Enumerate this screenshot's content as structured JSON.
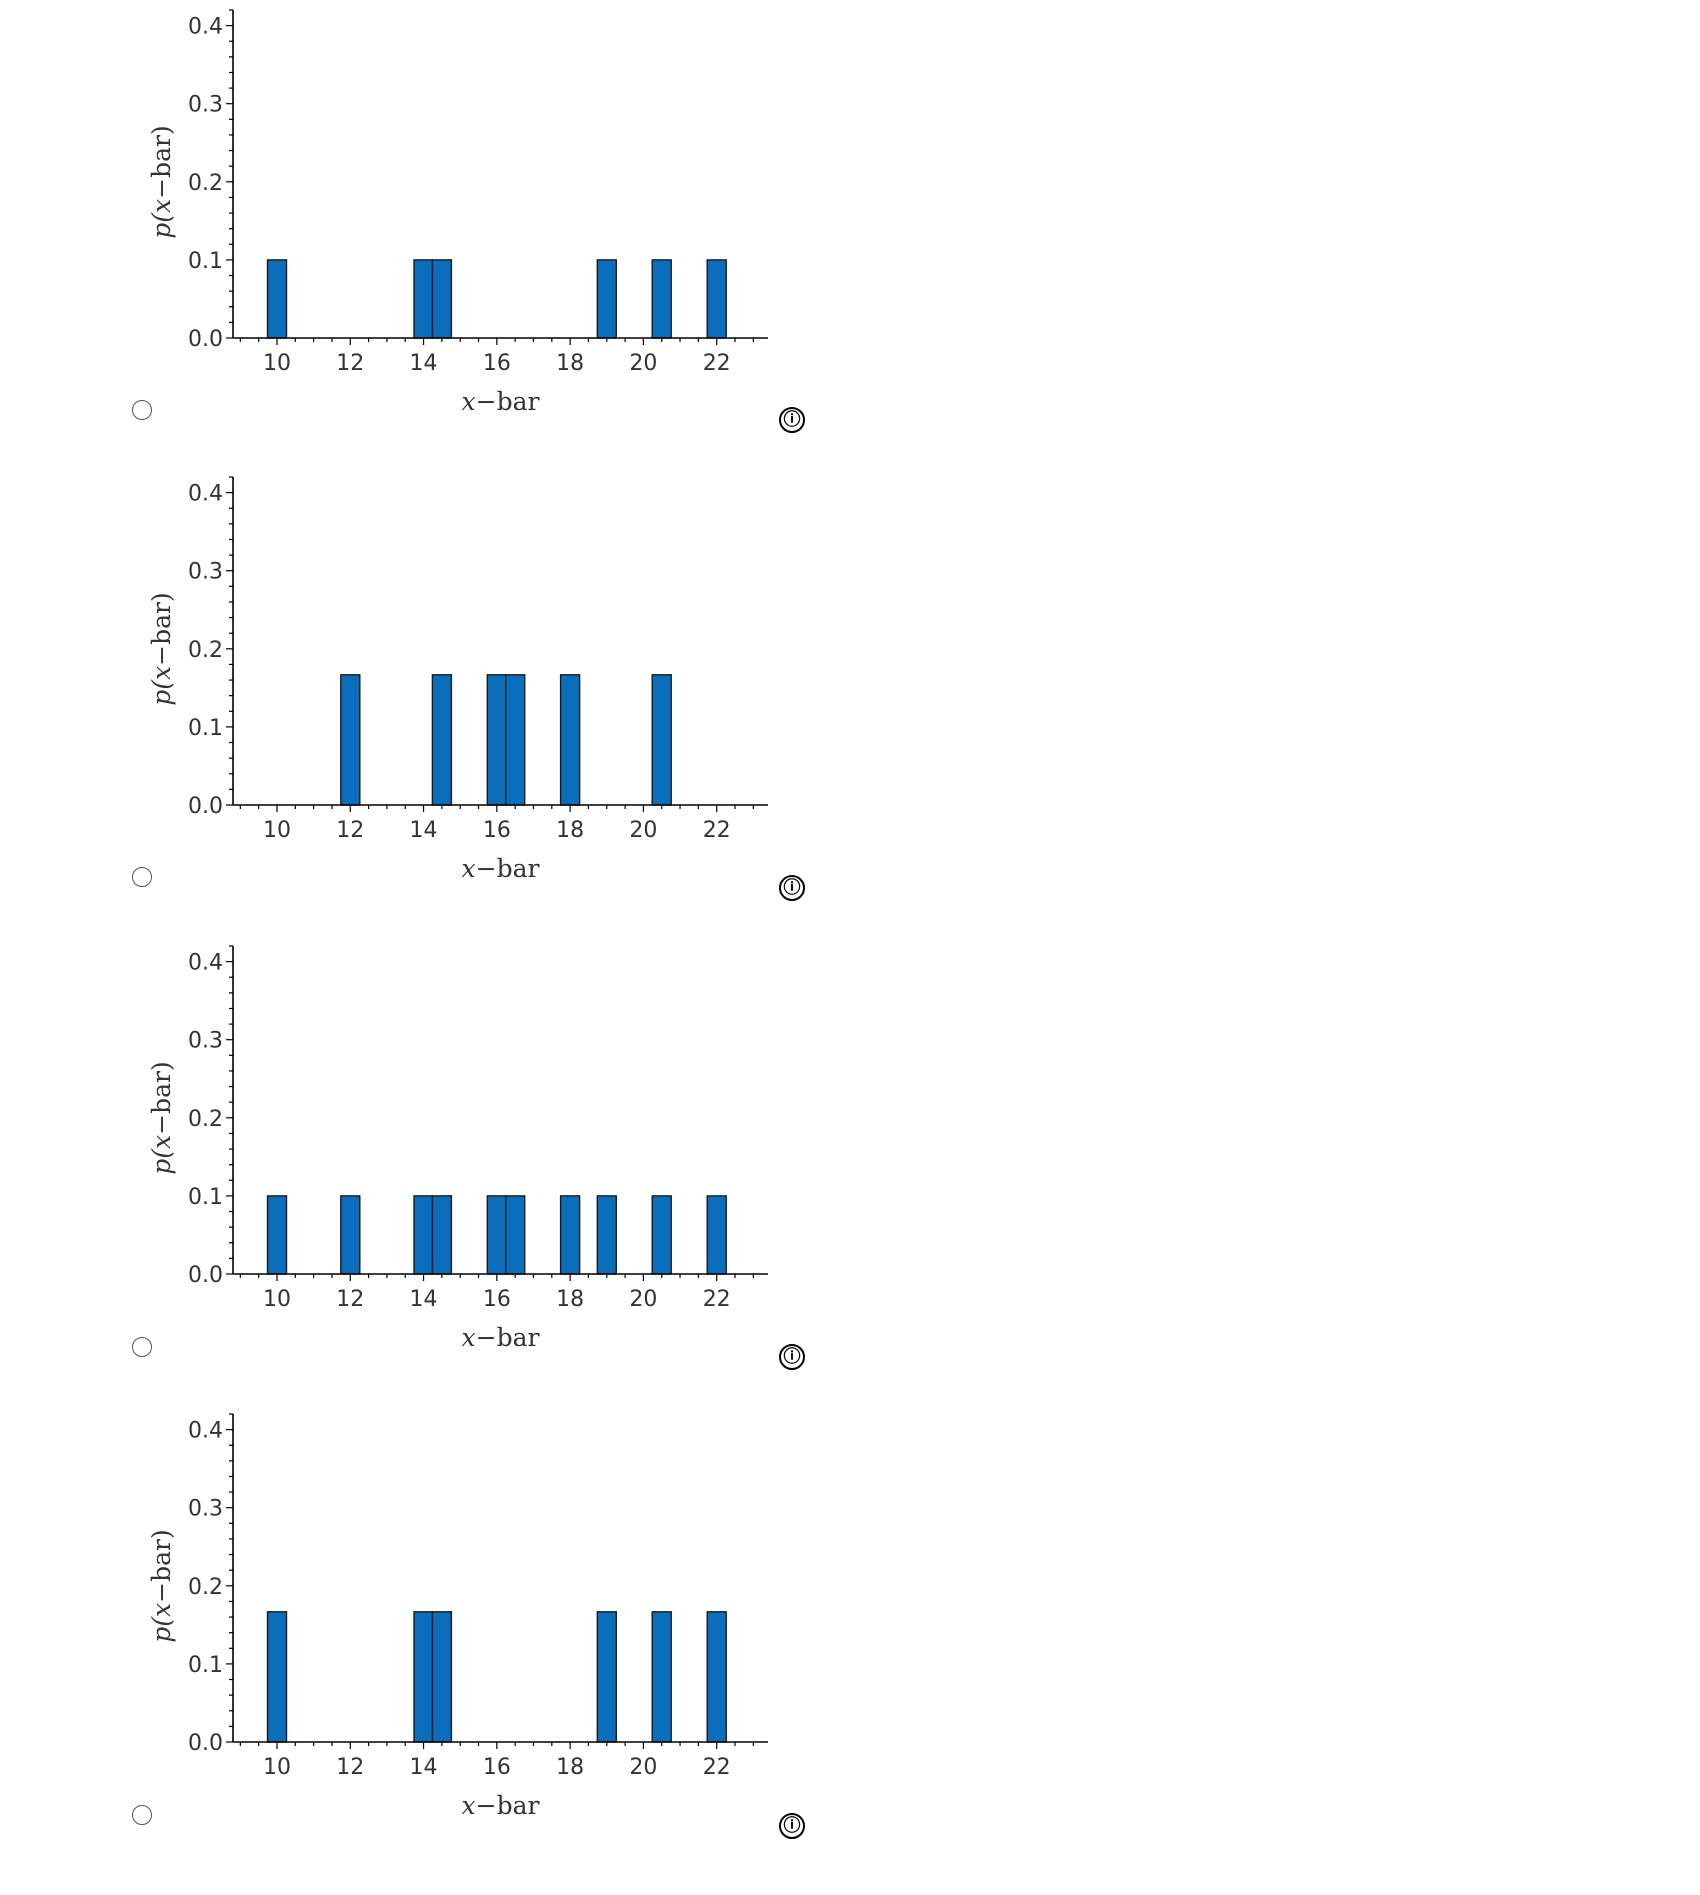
{
  "options": [
    {
      "radio_label": "",
      "info_icon": "ⓘ"
    },
    {
      "radio_label": "",
      "info_icon": "ⓘ"
    },
    {
      "radio_label": "",
      "info_icon": "ⓘ"
    },
    {
      "radio_label": "",
      "info_icon": "ⓘ"
    }
  ],
  "chart_data": [
    {
      "type": "bar",
      "xlabel_italic": "x",
      "xlabel_rest": "−bar",
      "ylabel_pre": "p(",
      "ylabel_italic": "x",
      "ylabel_post": "−bar)",
      "xlim": [
        8.8,
        23.4
      ],
      "ylim": [
        0,
        0.42
      ],
      "xticks": [
        "10",
        "12",
        "14",
        "16",
        "18",
        "20",
        "22"
      ],
      "xtick_values": [
        10,
        12,
        14,
        16,
        18,
        20,
        22
      ],
      "yticks": [
        "0.0",
        "0.1",
        "0.2",
        "0.3",
        "0.4"
      ],
      "ytick_values": [
        0,
        0.1,
        0.2,
        0.3,
        0.4
      ],
      "bar_color": "#0A6EBD",
      "x": [
        10,
        14,
        14.5,
        19,
        20.5,
        22
      ],
      "values": [
        0.1,
        0.1,
        0.1,
        0.1,
        0.1,
        0.1
      ]
    },
    {
      "type": "bar",
      "xlabel_italic": "x",
      "xlabel_rest": "−bar",
      "ylabel_pre": "p(",
      "ylabel_italic": "x",
      "ylabel_post": "−bar)",
      "xlim": [
        8.8,
        23.4
      ],
      "ylim": [
        0,
        0.42
      ],
      "xticks": [
        "10",
        "12",
        "14",
        "16",
        "18",
        "20",
        "22"
      ],
      "xtick_values": [
        10,
        12,
        14,
        16,
        18,
        20,
        22
      ],
      "yticks": [
        "0.0",
        "0.1",
        "0.2",
        "0.3",
        "0.4"
      ],
      "ytick_values": [
        0,
        0.1,
        0.2,
        0.3,
        0.4
      ],
      "bar_color": "#0A6EBD",
      "x": [
        12,
        14.5,
        16,
        16.5,
        18,
        20.5
      ],
      "values": [
        0.1667,
        0.1667,
        0.1667,
        0.1667,
        0.1667,
        0.1667
      ]
    },
    {
      "type": "bar",
      "xlabel_italic": "x",
      "xlabel_rest": "−bar",
      "ylabel_pre": "p(",
      "ylabel_italic": "x",
      "ylabel_post": "−bar)",
      "xlim": [
        8.8,
        23.4
      ],
      "ylim": [
        0,
        0.42
      ],
      "xticks": [
        "10",
        "12",
        "14",
        "16",
        "18",
        "20",
        "22"
      ],
      "xtick_values": [
        10,
        12,
        14,
        16,
        18,
        20,
        22
      ],
      "yticks": [
        "0.0",
        "0.1",
        "0.2",
        "0.3",
        "0.4"
      ],
      "ytick_values": [
        0,
        0.1,
        0.2,
        0.3,
        0.4
      ],
      "bar_color": "#0A6EBD",
      "x": [
        10,
        12,
        14,
        14.5,
        16,
        16.5,
        18,
        19,
        20.5,
        22
      ],
      "values": [
        0.1,
        0.1,
        0.1,
        0.1,
        0.1,
        0.1,
        0.1,
        0.1,
        0.1,
        0.1
      ]
    },
    {
      "type": "bar",
      "xlabel_italic": "x",
      "xlabel_rest": "−bar",
      "ylabel_pre": "p(",
      "ylabel_italic": "x",
      "ylabel_post": "−bar)",
      "xlim": [
        8.8,
        23.4
      ],
      "ylim": [
        0,
        0.42
      ],
      "xticks": [
        "10",
        "12",
        "14",
        "16",
        "18",
        "20",
        "22"
      ],
      "xtick_values": [
        10,
        12,
        14,
        16,
        18,
        20,
        22
      ],
      "yticks": [
        "0.0",
        "0.1",
        "0.2",
        "0.3",
        "0.4"
      ],
      "ytick_values": [
        0,
        0.1,
        0.2,
        0.3,
        0.4
      ],
      "bar_color": "#0A6EBD",
      "x": [
        10,
        14,
        14.5,
        19,
        20.5,
        22
      ],
      "values": [
        0.1667,
        0.1667,
        0.1667,
        0.1667,
        0.1667,
        0.1667
      ]
    }
  ]
}
